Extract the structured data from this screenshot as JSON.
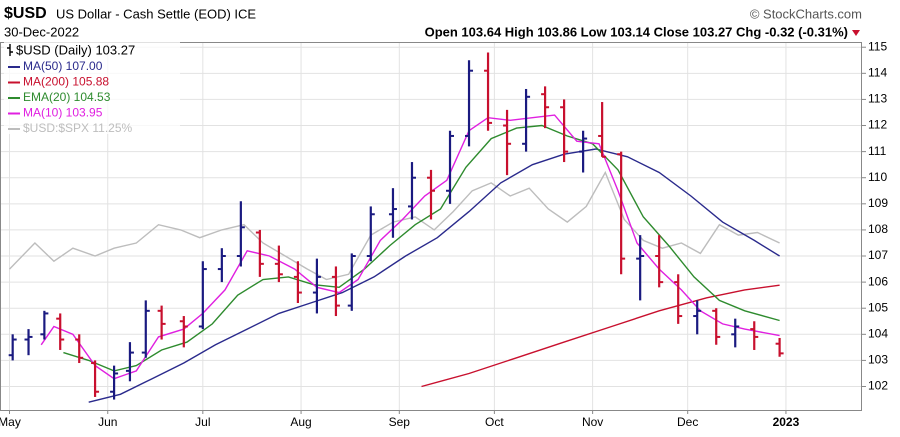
{
  "chart_data": {
    "type": "ohlc",
    "title": "$USD",
    "subtitle": "US Dollar - Cash Settle (EOD) ICE",
    "source": "© StockCharts.com",
    "date": "30-Dec-2022",
    "quote": "Open 103.64 High 103.86 Low 103.14 Close 103.27 Chg -0.32 (-0.31%)",
    "price_label": "$USD (Daily) 103.27",
    "up_color": "#1a1a80",
    "down_color": "#c8102e",
    "grid": true,
    "xlim": [
      -3,
      269
    ],
    "ylim": [
      101.1,
      115.2
    ],
    "xticks": [
      {
        "value": 0,
        "label": "May"
      },
      {
        "value": 31,
        "label": "Jun"
      },
      {
        "value": 61,
        "label": "Jul"
      },
      {
        "value": 92,
        "label": "Aug"
      },
      {
        "value": 123,
        "label": "Sep"
      },
      {
        "value": 153,
        "label": "Oct"
      },
      {
        "value": 184,
        "label": "Nov"
      },
      {
        "value": 214,
        "label": "Dec"
      },
      {
        "value": 245,
        "label": "2023"
      }
    ],
    "yticks": [
      102,
      103,
      104,
      105,
      106,
      107,
      108,
      109,
      110,
      111,
      112,
      113,
      114,
      115
    ],
    "x": [
      1,
      6,
      11,
      16,
      22,
      27,
      33,
      38,
      43,
      48,
      55,
      61,
      67,
      73,
      79,
      85,
      91,
      97,
      103,
      108,
      114,
      121,
      127,
      133,
      139,
      145,
      151,
      157,
      163,
      169,
      175,
      181,
      187,
      193,
      199,
      205,
      211,
      217,
      223,
      229,
      235,
      243
    ],
    "open": [
      103.2,
      103.8,
      104.0,
      104.6,
      103.8,
      102.9,
      101.8,
      102.6,
      103.3,
      104.9,
      104.5,
      104.3,
      106.5,
      107.0,
      107.9,
      106.7,
      106.2,
      105.6,
      106.2,
      105.1,
      107.0,
      108.6,
      108.9,
      110.0,
      109.5,
      111.6,
      114.1,
      112.0,
      111.3,
      113.2,
      112.7,
      111.0,
      111.6,
      110.9,
      106.9,
      107.0,
      106.0,
      104.7,
      104.9,
      104.0,
      104.2,
      103.64
    ],
    "high": [
      104.0,
      104.2,
      104.9,
      104.8,
      104.0,
      103.0,
      102.8,
      103.7,
      105.3,
      105.1,
      104.7,
      106.8,
      107.3,
      109.1,
      108.0,
      107.4,
      106.8,
      106.9,
      106.6,
      107.1,
      108.9,
      109.6,
      110.6,
      110.3,
      111.8,
      114.5,
      114.8,
      112.6,
      113.4,
      113.5,
      113.0,
      111.8,
      112.9,
      111.0,
      107.8,
      107.8,
      106.3,
      105.3,
      105.0,
      104.6,
      104.5,
      103.86
    ],
    "low": [
      103.0,
      103.2,
      103.8,
      103.4,
      102.9,
      101.6,
      101.5,
      102.2,
      103.1,
      103.8,
      103.5,
      104.2,
      106.0,
      106.6,
      106.2,
      106.0,
      105.2,
      104.8,
      104.7,
      104.9,
      106.8,
      107.7,
      108.4,
      108.4,
      109.0,
      111.2,
      111.8,
      110.1,
      111.0,
      111.9,
      110.6,
      110.2,
      110.8,
      106.3,
      105.3,
      105.8,
      104.4,
      104.0,
      103.6,
      103.5,
      103.4,
      103.14
    ],
    "close": [
      103.8,
      103.9,
      104.8,
      103.8,
      103.1,
      101.8,
      102.5,
      103.3,
      104.9,
      104.4,
      104.3,
      106.5,
      107.0,
      108.1,
      106.7,
      106.3,
      105.6,
      106.2,
      105.1,
      107.0,
      108.6,
      108.8,
      110.0,
      109.5,
      111.6,
      114.1,
      112.1,
      111.3,
      113.1,
      112.7,
      111.0,
      111.5,
      110.8,
      106.9,
      107.0,
      106.0,
      104.7,
      104.9,
      103.9,
      104.3,
      103.9,
      103.27
    ],
    "series": [
      {
        "name": "MA(50) 107.00",
        "color": "#2a2a8c",
        "x": [
          25,
          35,
          45,
          55,
          65,
          75,
          85,
          95,
          105,
          115,
          125,
          135,
          145,
          155,
          165,
          175,
          185,
          195,
          205,
          215,
          225,
          235,
          243
        ],
        "values": [
          101.4,
          101.7,
          102.3,
          102.9,
          103.6,
          104.2,
          104.8,
          105.2,
          105.6,
          106.2,
          107.0,
          107.7,
          108.7,
          109.8,
          110.5,
          110.9,
          111.1,
          110.8,
          110.2,
          109.3,
          108.3,
          107.6,
          107.0
        ]
      },
      {
        "name": "MA(200) 105.88",
        "color": "#c8102e",
        "x": [
          130,
          145,
          160,
          175,
          190,
          205,
          220,
          232,
          243
        ],
        "values": [
          102.0,
          102.5,
          103.1,
          103.7,
          104.3,
          104.9,
          105.4,
          105.7,
          105.88
        ]
      },
      {
        "name": "EMA(20) 104.53",
        "color": "#2e8b2e",
        "x": [
          17,
          25,
          33,
          40,
          48,
          56,
          64,
          72,
          80,
          88,
          96,
          104,
          112,
          120,
          128,
          136,
          144,
          152,
          160,
          168,
          176,
          184,
          192,
          200,
          208,
          216,
          224,
          232,
          243
        ],
        "values": [
          103.3,
          103.0,
          102.6,
          102.8,
          103.4,
          103.7,
          104.4,
          105.5,
          106.1,
          106.2,
          105.9,
          105.8,
          106.5,
          107.4,
          108.2,
          108.8,
          110.4,
          111.5,
          111.9,
          112.0,
          111.6,
          111.3,
          110.3,
          108.5,
          107.4,
          106.2,
          105.3,
          104.9,
          104.53
        ]
      },
      {
        "name": "MA(10) 103.95",
        "color": "#e020e0",
        "x": [
          10,
          14,
          20,
          27,
          33,
          40,
          47,
          55,
          61,
          68,
          75,
          82,
          90,
          97,
          104,
          110,
          117,
          124,
          131,
          138,
          145,
          151,
          158,
          165,
          172,
          179,
          186,
          192,
          198,
          205,
          212,
          218,
          225,
          232,
          243
        ],
        "values": [
          103.6,
          104.3,
          104.0,
          102.8,
          102.3,
          102.6,
          103.9,
          104.2,
          104.8,
          105.7,
          107.2,
          107.0,
          106.5,
          105.8,
          105.6,
          106.1,
          107.6,
          108.4,
          109.3,
          109.9,
          111.8,
          112.3,
          112.2,
          112.3,
          112.4,
          111.4,
          111.3,
          109.5,
          107.5,
          106.5,
          105.7,
          104.9,
          104.4,
          104.2,
          103.95
        ]
      },
      {
        "name": "$USD:$SPX 11.25%",
        "color": "#bdbdbd",
        "x": [
          0,
          8,
          14,
          20,
          27,
          33,
          40,
          47,
          54,
          60,
          67,
          74,
          80,
          87,
          94,
          100,
          107,
          114,
          121,
          128,
          134,
          140,
          146,
          152,
          158,
          164,
          170,
          176,
          182,
          188,
          194,
          200,
          206,
          212,
          218,
          224,
          230,
          236,
          243
        ],
        "values": [
          106.5,
          107.5,
          106.8,
          107.3,
          107.0,
          107.3,
          107.5,
          108.2,
          108.0,
          107.7,
          108.0,
          108.2,
          107.5,
          107.0,
          106.5,
          106.1,
          106.3,
          107.8,
          108.3,
          108.5,
          108.0,
          108.7,
          109.5,
          109.8,
          109.3,
          109.6,
          108.8,
          108.3,
          108.9,
          110.2,
          108.4,
          107.6,
          107.3,
          107.5,
          107.1,
          108.2,
          107.8,
          107.9,
          107.5
        ]
      }
    ]
  }
}
